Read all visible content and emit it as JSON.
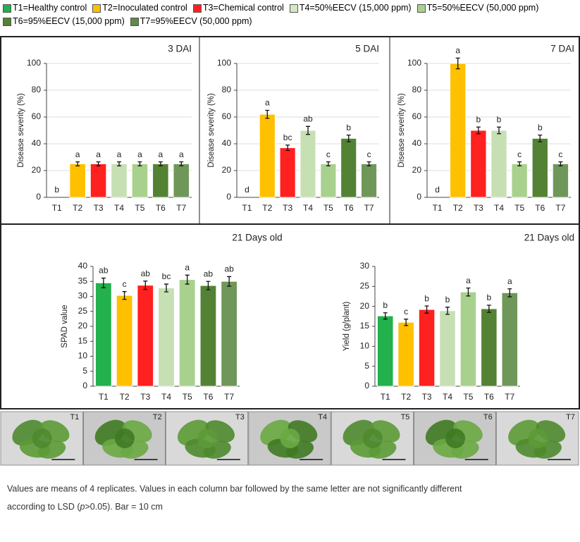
{
  "legend": [
    {
      "label": "T1=Healthy control",
      "color": "#22b14c"
    },
    {
      "label": "T2=Inoculated control",
      "color": "#ffc000"
    },
    {
      "label": "T3=Chemical control",
      "color": "#ff2020"
    },
    {
      "label": "T4=50%EECV (15,000 ppm)",
      "color": "#d4e8c4"
    },
    {
      "label": "T5=50%EECV (50,000 ppm)",
      "color": "#a9d18e"
    },
    {
      "label": "T6=95%EECV (15,000 ppm)",
      "color": "#548235"
    },
    {
      "label": "T7=95%EECV (50,000 ppm)",
      "color": "#5f8a48"
    }
  ],
  "chart_data": [
    {
      "type": "bar",
      "title": "3 DAI",
      "y_label": "Disease severity (%)",
      "categories": [
        "T1",
        "T2",
        "T3",
        "T4",
        "T5",
        "T6",
        "T7"
      ],
      "values": [
        0,
        25,
        25,
        25,
        25,
        25,
        25
      ],
      "errors": [
        0,
        1.5,
        1.5,
        1.5,
        1.5,
        1.5,
        1.5
      ],
      "letters": [
        "b",
        "a",
        "a",
        "a",
        "a",
        "a",
        "a"
      ],
      "colors": [
        "#22b14c",
        "#ffc000",
        "#ff2020",
        "#c6e0b4",
        "#a9d18e",
        "#548235",
        "#70975a"
      ],
      "ylim": [
        0,
        100
      ],
      "yticks": [
        0,
        20,
        40,
        60,
        80,
        100
      ],
      "grid": true
    },
    {
      "type": "bar",
      "title": "5 DAI",
      "y_label": "Disease severity (%)",
      "categories": [
        "T1",
        "T2",
        "T3",
        "T4",
        "T5",
        "T6",
        "T7"
      ],
      "values": [
        0,
        62,
        37,
        50,
        25,
        44,
        25
      ],
      "errors": [
        0,
        3,
        2,
        3,
        1.5,
        2.5,
        1.5
      ],
      "letters": [
        "d",
        "a",
        "bc",
        "ab",
        "c",
        "b",
        "c"
      ],
      "colors": [
        "#22b14c",
        "#ffc000",
        "#ff2020",
        "#c6e0b4",
        "#a9d18e",
        "#548235",
        "#70975a"
      ],
      "ylim": [
        0,
        100
      ],
      "yticks": [
        0,
        20,
        40,
        60,
        80,
        100
      ],
      "grid": true
    },
    {
      "type": "bar",
      "title": "7 DAI",
      "y_label": "Disease severity (%)",
      "categories": [
        "T1",
        "T2",
        "T3",
        "T4",
        "T5",
        "T6",
        "T7"
      ],
      "values": [
        0,
        100,
        50,
        50,
        25,
        44,
        25
      ],
      "errors": [
        0,
        4,
        2.5,
        2.5,
        1.5,
        2.5,
        1.5
      ],
      "letters": [
        "d",
        "a",
        "b",
        "b",
        "c",
        "b",
        "c"
      ],
      "colors": [
        "#22b14c",
        "#ffc000",
        "#ff2020",
        "#c6e0b4",
        "#a9d18e",
        "#548235",
        "#70975a"
      ],
      "ylim": [
        0,
        100
      ],
      "yticks": [
        0,
        20,
        40,
        60,
        80,
        100
      ],
      "grid": true
    },
    {
      "type": "bar",
      "title": "21 Days old",
      "y_label": "SPAD value",
      "categories": [
        "T1",
        "T2",
        "T3",
        "T4",
        "T5",
        "T6",
        "T7"
      ],
      "values": [
        34.5,
        30.3,
        33.7,
        32.8,
        35.6,
        33.6,
        35
      ],
      "errors": [
        1.6,
        1.3,
        1.4,
        1.3,
        1.5,
        1.4,
        1.6
      ],
      "letters": [
        "ab",
        "c",
        "ab",
        "bc",
        "a",
        "ab",
        "ab"
      ],
      "colors": [
        "#22b14c",
        "#ffc000",
        "#ff2020",
        "#c6e0b4",
        "#a9d18e",
        "#548235",
        "#70975a"
      ],
      "ylim": [
        0,
        40
      ],
      "yticks": [
        0,
        5,
        10,
        15,
        20,
        25,
        30,
        35,
        40
      ],
      "grid": false
    },
    {
      "type": "bar",
      "title": "21 Days old",
      "y_label": "Yield (g/plant)",
      "categories": [
        "T1",
        "T2",
        "T3",
        "T4",
        "T5",
        "T6",
        "T7"
      ],
      "values": [
        17.6,
        16,
        19.2,
        18.9,
        23.6,
        19.4,
        23.4
      ],
      "errors": [
        0.8,
        0.8,
        0.9,
        0.9,
        1,
        0.9,
        1
      ],
      "letters": [
        "b",
        "c",
        "b",
        "b",
        "a",
        "b",
        "a"
      ],
      "colors": [
        "#22b14c",
        "#ffc000",
        "#ff2020",
        "#c6e0b4",
        "#a9d18e",
        "#548235",
        "#70975a"
      ],
      "ylim": [
        0,
        30
      ],
      "yticks": [
        0,
        5,
        10,
        15,
        20,
        25,
        30
      ],
      "grid": false
    }
  ],
  "photos": {
    "labels": [
      "T1",
      "T2",
      "T3",
      "T4",
      "T5",
      "T6",
      "T7"
    ]
  },
  "caption": {
    "line1": "Values are means of 4 replicates. Values in each column bar followed by the same letter are not significantly different",
    "line2_before": "according to LSD (",
    "line2_italic": "p",
    "line2_after": ">0.05). Bar = 10 cm"
  }
}
